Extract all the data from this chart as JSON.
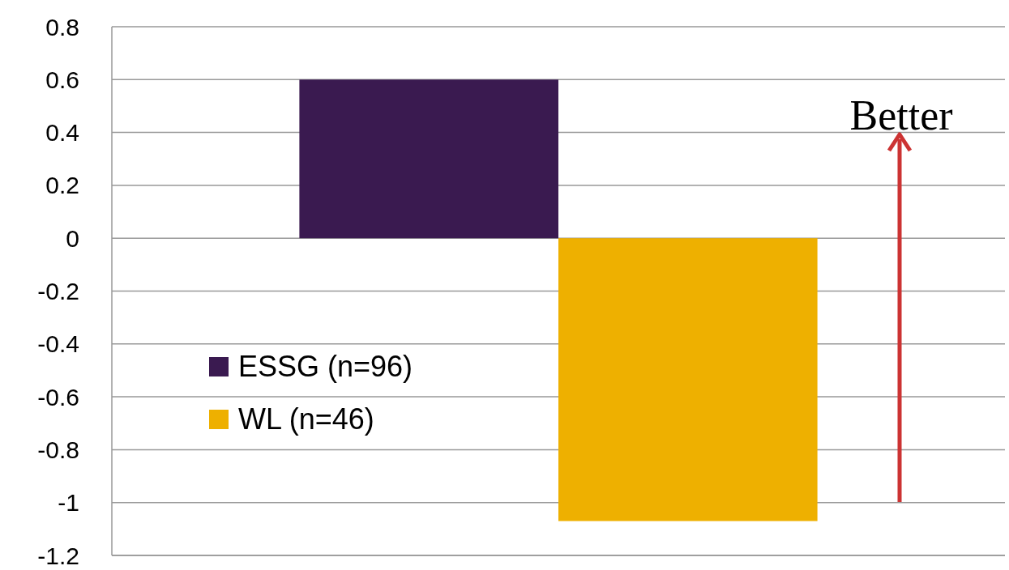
{
  "chart_data": {
    "type": "bar",
    "categories": [
      null
    ],
    "series": [
      {
        "name": "ESSG (n=96)",
        "color": "#3a1a50",
        "values": [
          0.6
        ]
      },
      {
        "name": "WL (n=46)",
        "color": "#eeb000",
        "values": [
          -1.07
        ]
      }
    ],
    "ylim": [
      -1.2,
      0.8
    ],
    "yticks": [
      -1.2,
      -1,
      -0.8,
      -0.6,
      -0.4,
      -0.2,
      0,
      0.2,
      0.4,
      0.6,
      0.8
    ],
    "grid": "y",
    "legend": "left",
    "annotations": [
      "Better"
    ]
  }
}
